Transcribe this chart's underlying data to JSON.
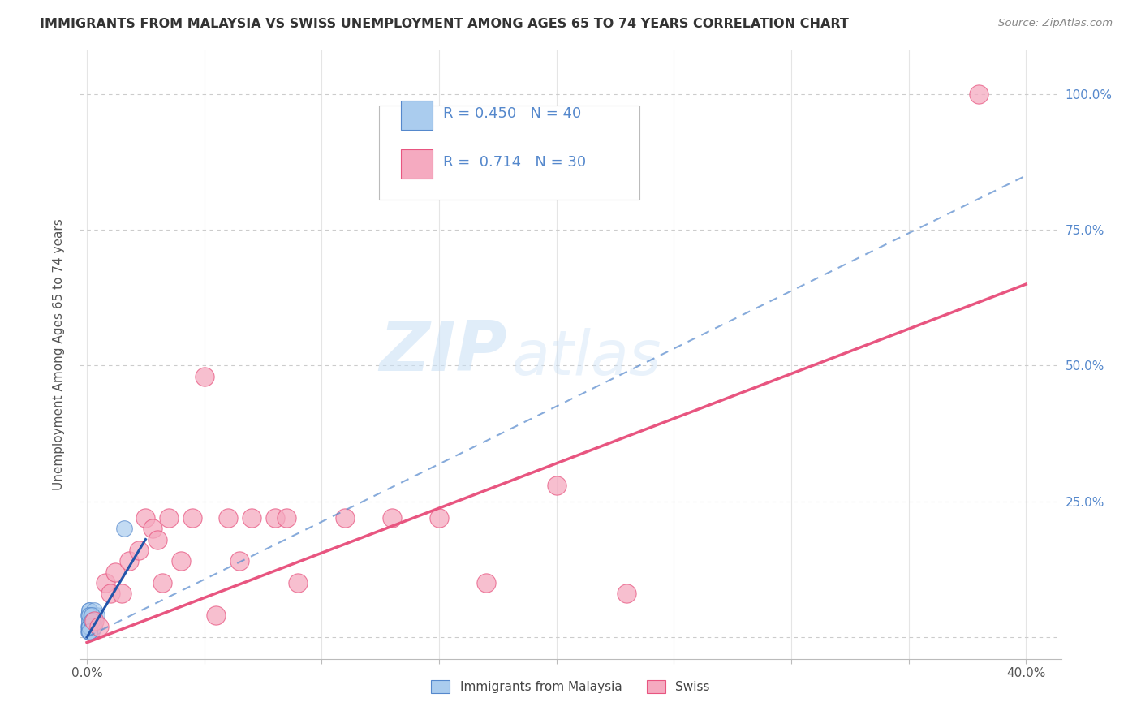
{
  "title": "IMMIGRANTS FROM MALAYSIA VS SWISS UNEMPLOYMENT AMONG AGES 65 TO 74 YEARS CORRELATION CHART",
  "source": "Source: ZipAtlas.com",
  "ylabel": "Unemployment Among Ages 65 to 74 years",
  "x_ticks": [
    0.0,
    0.05,
    0.1,
    0.15,
    0.2,
    0.25,
    0.3,
    0.35,
    0.4
  ],
  "x_tick_labels": [
    "0.0%",
    "",
    "",
    "",
    "",
    "",
    "",
    "",
    "40.0%"
  ],
  "y_ticks": [
    0.0,
    0.25,
    0.5,
    0.75,
    1.0
  ],
  "y_tick_labels_right": [
    "",
    "25.0%",
    "50.0%",
    "75.0%",
    "100.0%"
  ],
  "xlim": [
    -0.003,
    0.415
  ],
  "ylim": [
    -0.04,
    1.08
  ],
  "blue_R": 0.45,
  "blue_N": 40,
  "pink_R": 0.714,
  "pink_N": 30,
  "blue_color": "#aaccee",
  "blue_line_color": "#5588cc",
  "blue_solid_line_color": "#2255aa",
  "pink_color": "#f5aac0",
  "pink_line_color": "#e85580",
  "watermark_zip": "ZIP",
  "watermark_atlas": "atlas",
  "legend_label_blue": "Immigrants from Malaysia",
  "legend_label_pink": "Swiss",
  "blue_scatter_x": [
    0.0005,
    0.001,
    0.0015,
    0.002,
    0.0005,
    0.001,
    0.002,
    0.003,
    0.001,
    0.0015,
    0.002,
    0.001,
    0.0005,
    0.0015,
    0.002,
    0.001,
    0.003,
    0.002,
    0.001,
    0.004,
    0.002,
    0.001,
    0.002,
    0.003,
    0.001,
    0.002,
    0.001,
    0.003,
    0.016,
    0.003,
    0.002,
    0.001,
    0.001,
    0.002,
    0.001,
    0.001,
    0.002,
    0.001,
    0.002,
    0.001
  ],
  "blue_scatter_y": [
    0.01,
    0.02,
    0.015,
    0.025,
    0.02,
    0.03,
    0.02,
    0.03,
    0.04,
    0.035,
    0.02,
    0.05,
    0.04,
    0.03,
    0.04,
    0.02,
    0.04,
    0.03,
    0.05,
    0.04,
    0.01,
    0.02,
    0.03,
    0.02,
    0.01,
    0.04,
    0.03,
    0.02,
    0.2,
    0.05,
    0.03,
    0.04,
    0.02,
    0.03,
    0.01,
    0.02,
    0.04,
    0.02,
    0.03,
    0.01
  ],
  "pink_scatter_x": [
    0.003,
    0.005,
    0.008,
    0.01,
    0.012,
    0.015,
    0.018,
    0.022,
    0.025,
    0.028,
    0.03,
    0.032,
    0.035,
    0.04,
    0.045,
    0.05,
    0.055,
    0.06,
    0.065,
    0.07,
    0.08,
    0.085,
    0.09,
    0.11,
    0.13,
    0.15,
    0.17,
    0.2,
    0.23,
    0.38
  ],
  "pink_scatter_y": [
    0.03,
    0.02,
    0.1,
    0.08,
    0.12,
    0.08,
    0.14,
    0.16,
    0.22,
    0.2,
    0.18,
    0.1,
    0.22,
    0.14,
    0.22,
    0.48,
    0.04,
    0.22,
    0.14,
    0.22,
    0.22,
    0.22,
    0.1,
    0.22,
    0.22,
    0.22,
    0.1,
    0.28,
    0.08,
    1.0
  ],
  "blue_line_x0": 0.0,
  "blue_line_y0": 0.0,
  "blue_line_x1": 0.4,
  "blue_line_y1": 0.85,
  "pink_line_x0": 0.0,
  "pink_line_y0": -0.01,
  "pink_line_x1": 0.4,
  "pink_line_y1": 0.65,
  "grid_color": "#cccccc",
  "background_color": "#ffffff"
}
